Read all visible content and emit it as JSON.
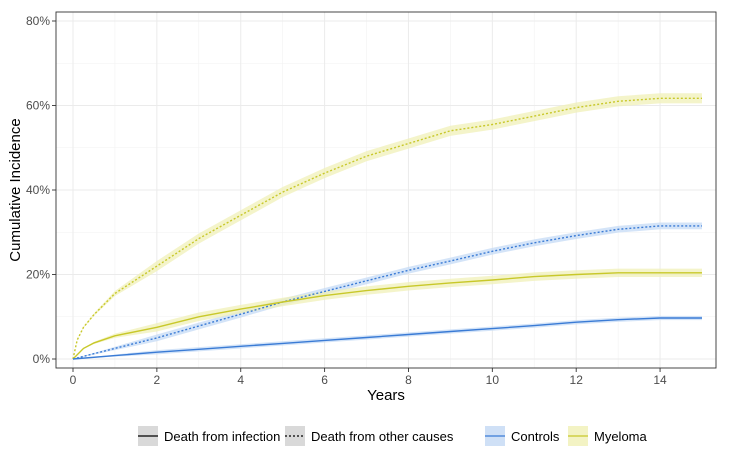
{
  "chart_data": {
    "type": "line",
    "title": "",
    "xlabel": "Years",
    "ylabel": "Cumulative Incidence",
    "xlim": [
      0,
      15
    ],
    "ylim": [
      0,
      0.8
    ],
    "x_ticks": [
      {
        "value": 0,
        "label": "0"
      },
      {
        "value": 2,
        "label": "2"
      },
      {
        "value": 4,
        "label": "4"
      },
      {
        "value": 6,
        "label": "6"
      },
      {
        "value": 8,
        "label": "8"
      },
      {
        "value": 10,
        "label": "10"
      },
      {
        "value": 12,
        "label": "12"
      },
      {
        "value": 14,
        "label": "14"
      }
    ],
    "y_ticks": [
      {
        "value": 0,
        "label": "0%"
      },
      {
        "value": 0.2,
        "label": "20%"
      },
      {
        "value": 0.4,
        "label": "40%"
      },
      {
        "value": 0.6,
        "label": "60%"
      },
      {
        "value": 0.8,
        "label": "80%"
      }
    ],
    "grid": true,
    "legend": {
      "position": "bottom",
      "linetype": [
        {
          "label": "Death from infection",
          "dash": "solid"
        },
        {
          "label": "Death from other causes",
          "dash": "dotted"
        }
      ],
      "color": [
        {
          "label": "Controls",
          "color": "#3a7bd5"
        },
        {
          "label": "Myeloma",
          "color": "#c8c82a"
        }
      ]
    },
    "colors": {
      "Controls": "#3a7bd5",
      "Myeloma": "#c8c82a"
    },
    "series": [
      {
        "group": "Myeloma",
        "cause": "Death from other causes",
        "dash": "dotted",
        "points": [
          [
            0,
            0
          ],
          [
            0.1,
            0.045
          ],
          [
            0.25,
            0.075
          ],
          [
            0.5,
            0.105
          ],
          [
            1,
            0.155
          ],
          [
            2,
            0.22
          ],
          [
            3,
            0.285
          ],
          [
            4,
            0.34
          ],
          [
            5,
            0.395
          ],
          [
            6,
            0.44
          ],
          [
            7,
            0.48
          ],
          [
            8,
            0.51
          ],
          [
            9,
            0.54
          ],
          [
            10,
            0.555
          ],
          [
            11,
            0.575
          ],
          [
            12,
            0.595
          ],
          [
            13,
            0.61
          ],
          [
            14,
            0.617
          ],
          [
            15,
            0.617
          ]
        ],
        "band": 0.012
      },
      {
        "group": "Controls",
        "cause": "Death from other causes",
        "dash": "dotted",
        "points": [
          [
            0,
            0
          ],
          [
            1,
            0.025
          ],
          [
            2,
            0.05
          ],
          [
            3,
            0.078
          ],
          [
            4,
            0.106
          ],
          [
            5,
            0.135
          ],
          [
            6,
            0.16
          ],
          [
            7,
            0.185
          ],
          [
            8,
            0.21
          ],
          [
            9,
            0.232
          ],
          [
            10,
            0.255
          ],
          [
            11,
            0.275
          ],
          [
            12,
            0.292
          ],
          [
            13,
            0.307
          ],
          [
            14,
            0.315
          ],
          [
            15,
            0.315
          ]
        ],
        "band": 0.008
      },
      {
        "group": "Myeloma",
        "cause": "Death from infection",
        "dash": "solid",
        "points": [
          [
            0,
            0
          ],
          [
            0.25,
            0.025
          ],
          [
            0.5,
            0.038
          ],
          [
            1,
            0.055
          ],
          [
            2,
            0.075
          ],
          [
            3,
            0.1
          ],
          [
            4,
            0.118
          ],
          [
            5,
            0.135
          ],
          [
            6,
            0.15
          ],
          [
            7,
            0.162
          ],
          [
            8,
            0.172
          ],
          [
            9,
            0.18
          ],
          [
            10,
            0.187
          ],
          [
            11,
            0.195
          ],
          [
            12,
            0.2
          ],
          [
            13,
            0.204
          ],
          [
            14,
            0.204
          ],
          [
            15,
            0.204
          ]
        ],
        "band": 0.01
      },
      {
        "group": "Controls",
        "cause": "Death from infection",
        "dash": "solid",
        "points": [
          [
            0,
            0
          ],
          [
            1,
            0.008
          ],
          [
            2,
            0.016
          ],
          [
            3,
            0.023
          ],
          [
            4,
            0.03
          ],
          [
            5,
            0.037
          ],
          [
            6,
            0.044
          ],
          [
            7,
            0.051
          ],
          [
            8,
            0.058
          ],
          [
            9,
            0.065
          ],
          [
            10,
            0.072
          ],
          [
            11,
            0.079
          ],
          [
            12,
            0.087
          ],
          [
            13,
            0.093
          ],
          [
            14,
            0.097
          ],
          [
            15,
            0.097
          ]
        ],
        "band": 0.005
      }
    ]
  }
}
